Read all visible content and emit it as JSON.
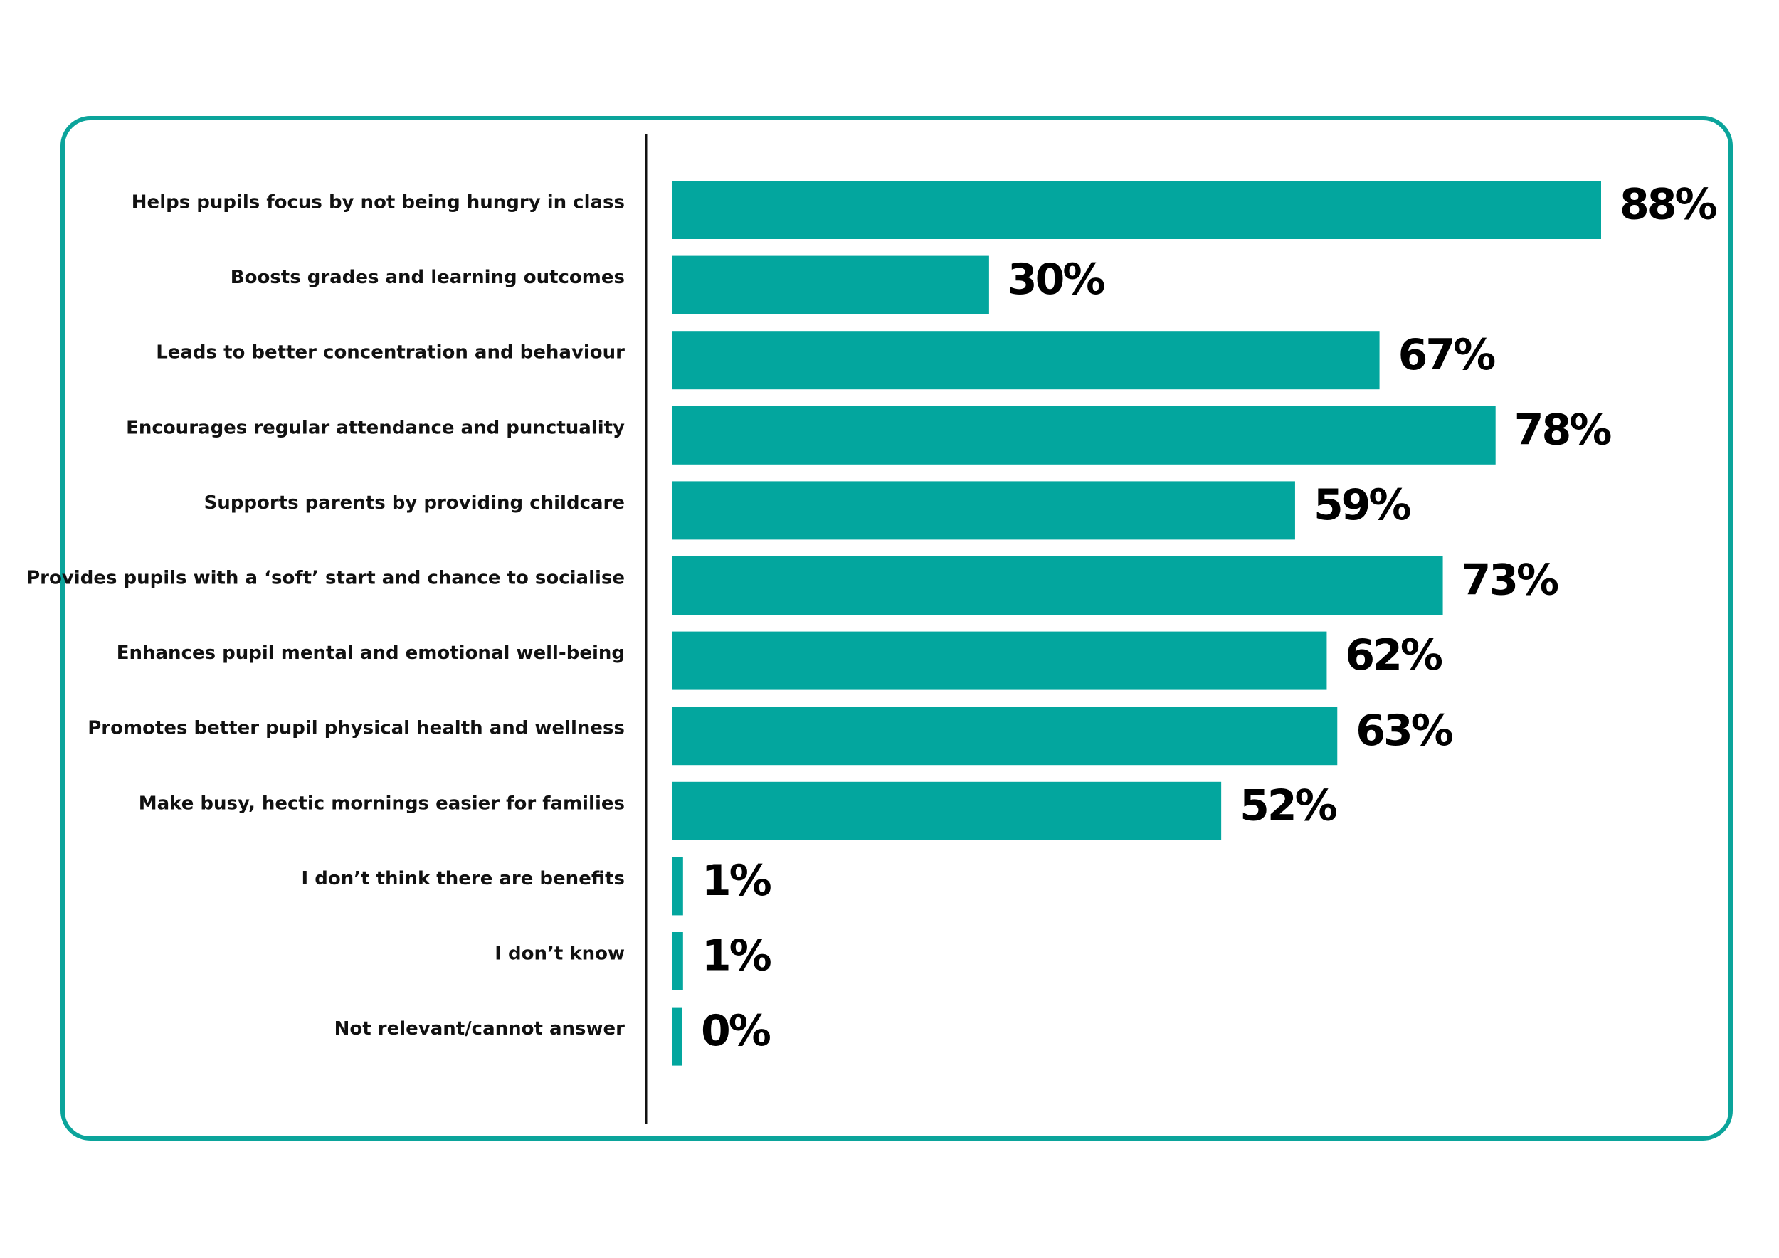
{
  "colors": {
    "bar": "#03a69e",
    "frame": "#0ba49b",
    "axis": "#111111",
    "text": "#000000"
  },
  "chart_data": {
    "type": "bar",
    "orientation": "horizontal",
    "value_format": "percent",
    "categories": [
      "Helps pupils focus by not being hungry in class",
      "Boosts grades and learning outcomes",
      "Leads to better concentration and behaviour",
      "Encourages regular attendance and punctuality",
      "Supports parents by providing childcare",
      "Provides pupils with a ‘soft’ start and chance to socialise",
      "Enhances pupil mental and emotional well-being",
      "Promotes better pupil physical health and wellness",
      "Make busy, hectic mornings easier for families",
      "I don’t think there are benefits",
      "I don’t know",
      "Not relevant/cannot answer"
    ],
    "values": [
      88,
      30,
      67,
      78,
      59,
      73,
      62,
      63,
      52,
      1,
      1,
      0
    ],
    "data_labels": [
      "88%",
      "30%",
      "67%",
      "78%",
      "59%",
      "73%",
      "62%",
      "63%",
      "52%",
      "1%",
      "1%",
      "0%"
    ],
    "xlim": [
      0,
      88
    ],
    "grid": false,
    "legend": false
  }
}
